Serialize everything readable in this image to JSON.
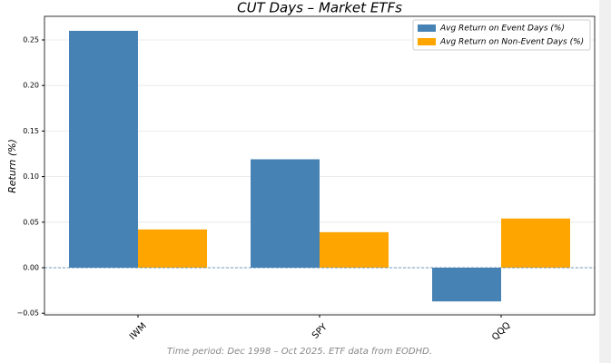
{
  "chart_data": {
    "type": "bar",
    "title": "CUT Days – Market ETFs",
    "y_label": "Return (%)",
    "footnote": "Time period: Dec 1998 – Oct 2025. ETF data from EODHD.",
    "categories": [
      "IWM",
      "SPY",
      "QQQ"
    ],
    "series": [
      {
        "name": "Avg Return on Event Days (%)",
        "color": "#4682b4",
        "values": [
          0.26,
          0.119,
          -0.037
        ]
      },
      {
        "name": "Avg Return on Non-Event Days (%)",
        "color": "#ffa500",
        "values": [
          0.042,
          0.039,
          0.054
        ]
      }
    ],
    "ylim": [
      -0.0518,
      0.2759
    ],
    "yticks": [
      {
        "value": -0.05,
        "label": "−0.05"
      },
      {
        "value": 0,
        "label": "0.00"
      },
      {
        "value": 0.05,
        "label": "0.05"
      },
      {
        "value": 0.1,
        "label": "0.10"
      },
      {
        "value": 0.15,
        "label": "0.15"
      },
      {
        "value": 0.2,
        "label": "0.20"
      },
      {
        "value": 0.25,
        "label": "0.25"
      }
    ],
    "hline": 0,
    "grid": true,
    "legend": "upper right"
  }
}
